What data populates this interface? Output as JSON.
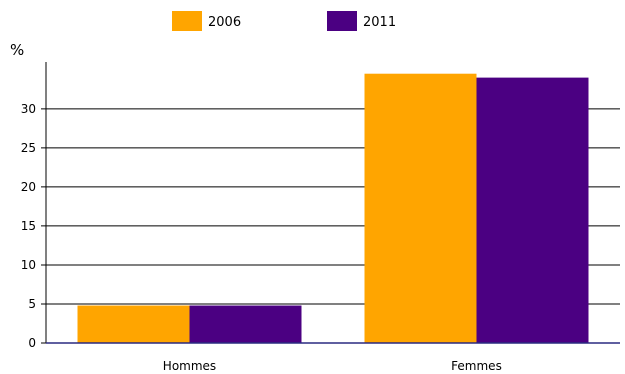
{
  "chart_data": {
    "type": "bar",
    "title": "",
    "xlabel": "",
    "ylabel": "%",
    "categories": [
      "Hommes",
      "Femmes"
    ],
    "series": [
      {
        "name": "2006",
        "color": "#ffa500",
        "values": [
          4.8,
          34.5
        ]
      },
      {
        "name": "2011",
        "color": "#4b0082",
        "values": [
          4.8,
          34.0
        ]
      }
    ],
    "ylim": [
      0,
      36
    ],
    "yticks": [
      0,
      5,
      10,
      15,
      20,
      25,
      30
    ],
    "grid": true,
    "legend_position": "top-left"
  }
}
